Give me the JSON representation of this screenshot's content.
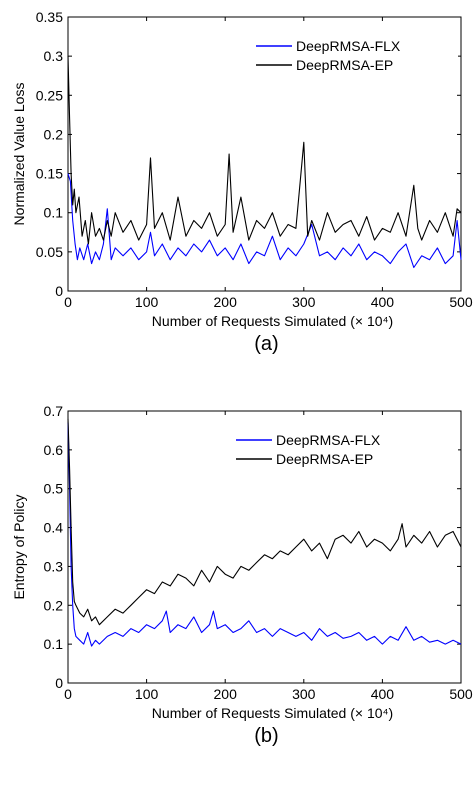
{
  "chart_data": [
    {
      "type": "line",
      "panel_label": "(a)",
      "xlabel": "Number of Requests Simulated (× 10⁴)",
      "ylabel": "Normalized Value Loss",
      "xlim": [
        0,
        500
      ],
      "ylim": [
        0,
        0.35
      ],
      "xticks": [
        "0",
        "100",
        "200",
        "300",
        "400",
        "500"
      ],
      "yticks": [
        "0",
        "0.05",
        "0.1",
        "0.15",
        "0.2",
        "0.25",
        "0.3",
        "0.35"
      ],
      "grid": false,
      "legend_position": "top-right",
      "series": [
        {
          "name": "DeepRMSA-FLX",
          "color": "#0000ff",
          "x": [
            0,
            3,
            6,
            9,
            12,
            15,
            20,
            25,
            30,
            35,
            40,
            45,
            50,
            55,
            60,
            70,
            80,
            90,
            100,
            105,
            110,
            120,
            130,
            140,
            150,
            160,
            170,
            180,
            190,
            200,
            210,
            220,
            230,
            240,
            250,
            260,
            270,
            280,
            290,
            300,
            310,
            320,
            330,
            340,
            350,
            360,
            370,
            380,
            390,
            400,
            410,
            420,
            430,
            440,
            450,
            460,
            470,
            480,
            490,
            495,
            500
          ],
          "values": [
            0.15,
            0.14,
            0.09,
            0.06,
            0.04,
            0.055,
            0.04,
            0.06,
            0.035,
            0.05,
            0.04,
            0.06,
            0.105,
            0.04,
            0.055,
            0.045,
            0.055,
            0.04,
            0.05,
            0.075,
            0.045,
            0.06,
            0.04,
            0.055,
            0.045,
            0.06,
            0.05,
            0.065,
            0.045,
            0.055,
            0.04,
            0.06,
            0.035,
            0.05,
            0.045,
            0.07,
            0.04,
            0.055,
            0.045,
            0.06,
            0.085,
            0.045,
            0.05,
            0.04,
            0.055,
            0.045,
            0.06,
            0.04,
            0.05,
            0.045,
            0.035,
            0.05,
            0.06,
            0.03,
            0.045,
            0.04,
            0.055,
            0.035,
            0.045,
            0.09,
            0.04
          ]
        },
        {
          "name": "DeepRMSA-EP",
          "color": "#000000",
          "x": [
            0,
            2,
            4,
            6,
            8,
            10,
            14,
            18,
            22,
            26,
            30,
            35,
            40,
            45,
            50,
            55,
            60,
            70,
            80,
            90,
            100,
            105,
            110,
            120,
            130,
            140,
            150,
            160,
            170,
            180,
            190,
            200,
            205,
            210,
            220,
            230,
            240,
            250,
            260,
            270,
            280,
            290,
            300,
            305,
            310,
            320,
            330,
            340,
            350,
            360,
            370,
            380,
            390,
            400,
            410,
            420,
            430,
            440,
            445,
            450,
            460,
            470,
            480,
            490,
            495,
            500
          ],
          "values": [
            0.3,
            0.22,
            0.15,
            0.11,
            0.13,
            0.1,
            0.12,
            0.07,
            0.09,
            0.06,
            0.1,
            0.07,
            0.08,
            0.065,
            0.09,
            0.07,
            0.1,
            0.075,
            0.09,
            0.065,
            0.085,
            0.17,
            0.08,
            0.1,
            0.065,
            0.12,
            0.07,
            0.09,
            0.08,
            0.1,
            0.07,
            0.085,
            0.175,
            0.075,
            0.12,
            0.065,
            0.09,
            0.08,
            0.1,
            0.07,
            0.085,
            0.08,
            0.19,
            0.07,
            0.09,
            0.065,
            0.1,
            0.075,
            0.085,
            0.09,
            0.07,
            0.095,
            0.065,
            0.08,
            0.075,
            0.1,
            0.07,
            0.135,
            0.08,
            0.065,
            0.09,
            0.075,
            0.1,
            0.07,
            0.105,
            0.1
          ]
        }
      ]
    },
    {
      "type": "line",
      "panel_label": "(b)",
      "xlabel": "Number of Requests Simulated (× 10⁴)",
      "ylabel": "Entropy of Policy",
      "xlim": [
        0,
        500
      ],
      "ylim": [
        0,
        0.7
      ],
      "xticks": [
        "0",
        "100",
        "200",
        "300",
        "400",
        "500"
      ],
      "yticks": [
        "0",
        "0.1",
        "0.2",
        "0.3",
        "0.4",
        "0.5",
        "0.6",
        "0.7"
      ],
      "grid": false,
      "legend_position": "top-right",
      "series": [
        {
          "name": "DeepRMSA-FLX",
          "color": "#0000ff",
          "x": [
            0,
            2,
            4,
            6,
            8,
            10,
            15,
            20,
            25,
            30,
            35,
            40,
            50,
            60,
            70,
            80,
            90,
            100,
            110,
            120,
            125,
            130,
            140,
            150,
            160,
            170,
            180,
            185,
            190,
            200,
            210,
            220,
            230,
            240,
            250,
            260,
            270,
            280,
            290,
            300,
            310,
            320,
            330,
            340,
            350,
            360,
            370,
            380,
            390,
            400,
            410,
            420,
            430,
            440,
            450,
            460,
            470,
            480,
            490,
            500
          ],
          "values": [
            0.67,
            0.5,
            0.3,
            0.2,
            0.14,
            0.12,
            0.11,
            0.1,
            0.13,
            0.095,
            0.11,
            0.1,
            0.12,
            0.13,
            0.12,
            0.14,
            0.13,
            0.15,
            0.14,
            0.16,
            0.185,
            0.13,
            0.15,
            0.14,
            0.17,
            0.13,
            0.15,
            0.185,
            0.14,
            0.15,
            0.13,
            0.14,
            0.16,
            0.13,
            0.14,
            0.12,
            0.14,
            0.13,
            0.12,
            0.13,
            0.11,
            0.14,
            0.12,
            0.13,
            0.115,
            0.12,
            0.13,
            0.11,
            0.12,
            0.1,
            0.12,
            0.11,
            0.145,
            0.11,
            0.12,
            0.105,
            0.11,
            0.1,
            0.11,
            0.1
          ]
        },
        {
          "name": "DeepRMSA-EP",
          "color": "#000000",
          "x": [
            0,
            2,
            4,
            6,
            8,
            10,
            15,
            20,
            25,
            30,
            35,
            40,
            50,
            60,
            70,
            80,
            90,
            100,
            110,
            120,
            130,
            140,
            150,
            160,
            170,
            180,
            190,
            200,
            210,
            220,
            230,
            240,
            250,
            260,
            270,
            280,
            290,
            300,
            310,
            320,
            330,
            340,
            350,
            360,
            370,
            380,
            390,
            400,
            410,
            420,
            425,
            430,
            440,
            450,
            460,
            470,
            480,
            490,
            500
          ],
          "values": [
            0.68,
            0.55,
            0.4,
            0.26,
            0.21,
            0.2,
            0.18,
            0.17,
            0.19,
            0.16,
            0.17,
            0.15,
            0.17,
            0.19,
            0.18,
            0.2,
            0.22,
            0.24,
            0.23,
            0.26,
            0.25,
            0.28,
            0.27,
            0.25,
            0.29,
            0.26,
            0.3,
            0.28,
            0.27,
            0.3,
            0.29,
            0.31,
            0.33,
            0.32,
            0.34,
            0.33,
            0.35,
            0.37,
            0.34,
            0.36,
            0.32,
            0.37,
            0.38,
            0.36,
            0.39,
            0.35,
            0.37,
            0.36,
            0.34,
            0.37,
            0.41,
            0.35,
            0.38,
            0.36,
            0.39,
            0.35,
            0.38,
            0.39,
            0.35
          ]
        }
      ]
    }
  ]
}
